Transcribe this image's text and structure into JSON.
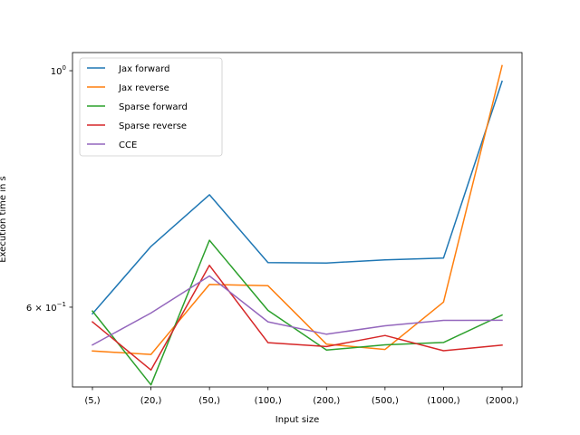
{
  "chart_data": {
    "type": "line",
    "title": "",
    "xlabel": "Input size",
    "ylabel": "Execution time in s",
    "yscale": "log",
    "categories": [
      "(5,)",
      "(20,)",
      "(50,)",
      "(100,)",
      "(200,)",
      "(500,)",
      "(1000,)",
      "(2000,)"
    ],
    "ylim": [
      0.505,
      1.04
    ],
    "yticks": [
      {
        "value": 1.0,
        "base": "10",
        "exp": "0"
      },
      {
        "value": 0.6,
        "mant": "6",
        "base": "10",
        "exp": "−1"
      }
    ],
    "legend_position": "upper-left",
    "grid": false,
    "series": [
      {
        "name": "Jax forward",
        "color": "#1f77b4",
        "values": [
          0.5915,
          0.6842,
          0.7649,
          0.6608,
          0.6601,
          0.6646,
          0.6672,
          0.9775
        ]
      },
      {
        "name": "Jax reverse",
        "color": "#ff7f0e",
        "values": [
          0.5458,
          0.5418,
          0.6302,
          0.6284,
          0.5539,
          0.5476,
          0.6067,
          1.0111
        ]
      },
      {
        "name": "Sparse forward",
        "color": "#2ca02c",
        "values": [
          0.595,
          0.5073,
          0.6934,
          0.5959,
          0.5469,
          0.5531,
          0.5559,
          0.5899
        ]
      },
      {
        "name": "Sparse reverse",
        "color": "#d62728",
        "values": [
          0.5812,
          0.5238,
          0.6568,
          0.5557,
          0.5511,
          0.5644,
          0.5461,
          0.5528
        ]
      },
      {
        "name": "CCE",
        "color": "#9467bd",
        "values": [
          0.553,
          0.5925,
          0.6419,
          0.5813,
          0.566,
          0.5764,
          0.5832,
          0.5833
        ]
      }
    ]
  }
}
